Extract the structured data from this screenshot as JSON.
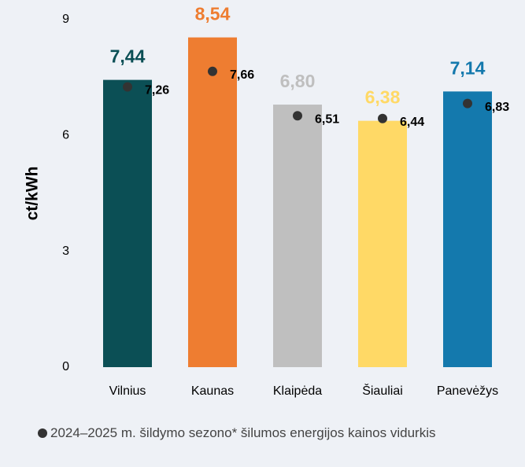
{
  "chart_data": {
    "type": "bar",
    "y_label": "ct/kWh",
    "categories": [
      "Vilnius",
      "Kaunas",
      "Klaipėda",
      "Šiauliai",
      "Panevėžys"
    ],
    "ylim": [
      0,
      9
    ],
    "yticks": [
      0,
      3,
      6,
      9
    ],
    "grid": false,
    "series": [
      {
        "type": "bar",
        "values": [
          7.44,
          8.54,
          6.8,
          6.38,
          7.14
        ],
        "value_labels": [
          "7,44",
          "8,54",
          "6,80",
          "6,38",
          "7,14"
        ],
        "colors": [
          "#0b4f55",
          "#ee7d31",
          "#bfbfbf",
          "#ffd966",
          "#1479ad"
        ]
      },
      {
        "type": "scatter",
        "name": "2024–2025 m. šildymo sezono* šilumos energijos kainos vidurkis",
        "color": "#333333",
        "values": [
          7.26,
          7.66,
          6.51,
          6.44,
          6.83
        ],
        "value_labels": [
          "7,26",
          "7,66",
          "6,51",
          "6,44",
          "6,83"
        ]
      }
    ]
  }
}
